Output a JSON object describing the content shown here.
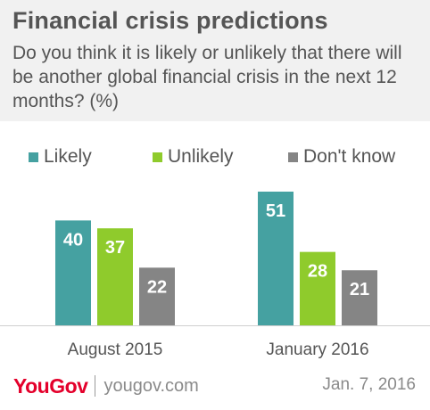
{
  "header": {
    "title": "Financial crisis predictions",
    "subtitle": "Do you think it is likely or unlikely that there will be another global financial crisis in the next 12 months? (%)"
  },
  "colors": {
    "likely": "#45a1a1",
    "unlikely": "#8fcb2c",
    "dont_know": "#858585",
    "header_bg": "#f1f1f1",
    "brand_red": "#e4002b"
  },
  "chart_data": {
    "type": "bar",
    "title": "Financial crisis predictions",
    "subtitle": "Do you think it is likely or unlikely that there will be another global financial crisis in the next 12 months? (%)",
    "categories": [
      "August 2015",
      "January 2016"
    ],
    "series": [
      {
        "name": "Likely",
        "color": "#45a1a1",
        "values": [
          40,
          51
        ]
      },
      {
        "name": "Unlikely",
        "color": "#8fcb2c",
        "values": [
          37,
          28
        ]
      },
      {
        "name": "Don't know",
        "color": "#858585",
        "values": [
          22,
          21
        ]
      }
    ],
    "ylim": [
      0,
      60
    ],
    "grid": false,
    "legend": "top",
    "data_labels": true
  },
  "footer": {
    "logo_you": "You",
    "logo_gov": "Gov",
    "site": "yougov.com",
    "date": "Jan. 7, 2016"
  }
}
